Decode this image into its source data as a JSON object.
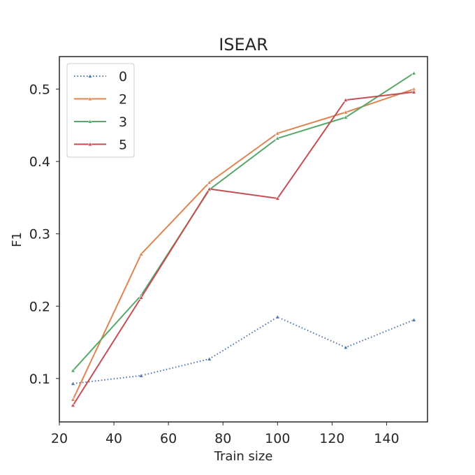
{
  "chart_data": {
    "type": "line",
    "title": "ISEAR",
    "xlabel": "Train size",
    "ylabel": "F1",
    "x": [
      25,
      50,
      75,
      100,
      125,
      150
    ],
    "xlim": [
      20,
      155
    ],
    "ylim": [
      0.04,
      0.545
    ],
    "xticks": [
      20,
      40,
      60,
      80,
      100,
      120,
      140
    ],
    "yticks": [
      0.1,
      0.2,
      0.3,
      0.4,
      0.5
    ],
    "grid": false,
    "legend_position": "top-left",
    "series": [
      {
        "name": "0",
        "color": "#4c72b0",
        "line_style": "dotted",
        "marker": "triangle",
        "values": [
          0.093,
          0.104,
          0.127,
          0.185,
          0.143,
          0.181
        ]
      },
      {
        "name": "2",
        "color": "#dd8452",
        "line_style": "solid",
        "marker": "triangle",
        "values": [
          0.071,
          0.272,
          0.371,
          0.439,
          0.468,
          0.5
        ]
      },
      {
        "name": "3",
        "color": "#55a868",
        "line_style": "solid",
        "marker": "triangle",
        "values": [
          0.111,
          0.215,
          0.361,
          0.432,
          0.461,
          0.522
        ]
      },
      {
        "name": "5",
        "color": "#c44e52",
        "line_style": "solid",
        "marker": "triangle",
        "values": [
          0.063,
          0.212,
          0.362,
          0.349,
          0.485,
          0.496
        ]
      }
    ]
  }
}
